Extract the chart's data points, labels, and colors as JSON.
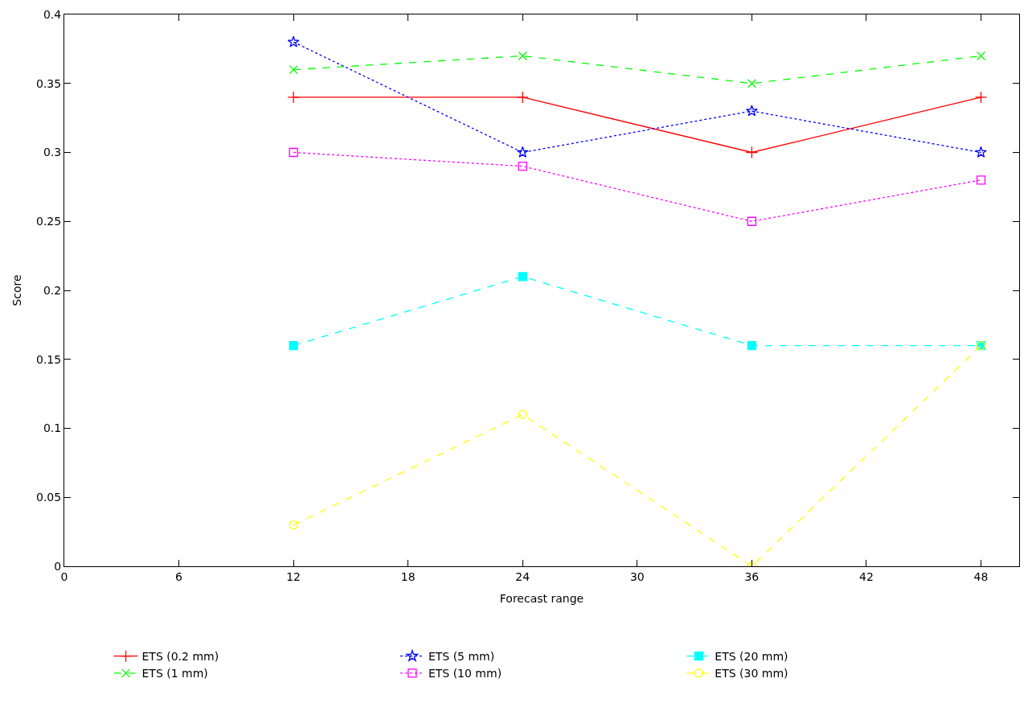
{
  "chart_data": {
    "type": "line",
    "xlabel": "Forecast range",
    "ylabel": "Score",
    "x": [
      12,
      24,
      36,
      48
    ],
    "xlim": [
      0,
      50
    ],
    "xticks": [
      0,
      6,
      12,
      18,
      24,
      30,
      36,
      42,
      48
    ],
    "ylim": [
      0,
      0.4
    ],
    "yticks": [
      0,
      0.05,
      0.1,
      0.15,
      0.2,
      0.25,
      0.3,
      0.35,
      0.4
    ],
    "legend": "bottom",
    "series": [
      {
        "name": "ETS (0.2 mm)",
        "color": "#ff0000",
        "line_style": "solid",
        "marker": "cross",
        "values": [
          0.34,
          0.34,
          0.3,
          0.34
        ]
      },
      {
        "name": "ETS (1 mm)",
        "color": "#00ff00",
        "line_style": "dashed",
        "marker": "x",
        "values": [
          0.36,
          0.37,
          0.35,
          0.37
        ]
      },
      {
        "name": "ETS (5 mm)",
        "color": "#0000ff",
        "line_style": "dotted",
        "marker": "star",
        "values": [
          0.38,
          0.3,
          0.33,
          0.3
        ]
      },
      {
        "name": "ETS (10 mm)",
        "color": "#ff00ff",
        "line_style": "dotted",
        "marker": "square-open",
        "values": [
          0.3,
          0.29,
          0.25,
          0.28
        ]
      },
      {
        "name": "ETS (20 mm)",
        "color": "#00ffff",
        "line_style": "dashed",
        "marker": "square",
        "values": [
          0.16,
          0.21,
          0.16,
          0.16
        ]
      },
      {
        "name": "ETS (30 mm)",
        "color": "#ffff00",
        "line_style": "dashed",
        "marker": "circle-open",
        "values": [
          0.03,
          0.11,
          0.0,
          0.16
        ]
      }
    ]
  }
}
